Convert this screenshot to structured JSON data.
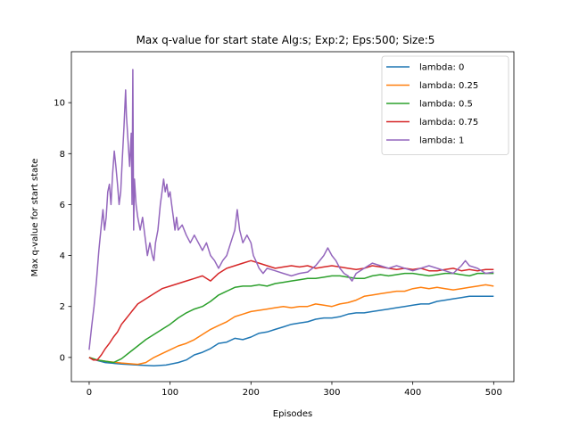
{
  "chart_data": {
    "type": "line",
    "title": "Max q-value for start state Alg:s; Exp:2; Eps:500; Size:5",
    "xlabel": "Episodes",
    "ylabel": "Max q-value for start state",
    "xlim": [
      -22,
      525
    ],
    "ylim": [
      -0.95,
      12.0
    ],
    "xticks": [
      0,
      100,
      200,
      300,
      400,
      500
    ],
    "yticks": [
      0,
      2,
      4,
      6,
      8,
      10
    ],
    "grid": false,
    "legend": "top-right",
    "series": [
      {
        "name": "lambda: 0",
        "color": "#1f77b4",
        "points": [
          [
            0,
            0
          ],
          [
            10,
            -0.12
          ],
          [
            20,
            -0.2
          ],
          [
            40,
            -0.26
          ],
          [
            60,
            -0.3
          ],
          [
            80,
            -0.33
          ],
          [
            95,
            -0.3
          ],
          [
            110,
            -0.2
          ],
          [
            120,
            -0.1
          ],
          [
            130,
            0.1
          ],
          [
            140,
            0.2
          ],
          [
            150,
            0.35
          ],
          [
            160,
            0.55
          ],
          [
            170,
            0.6
          ],
          [
            180,
            0.75
          ],
          [
            190,
            0.7
          ],
          [
            200,
            0.8
          ],
          [
            210,
            0.95
          ],
          [
            220,
            1.0
          ],
          [
            230,
            1.1
          ],
          [
            240,
            1.2
          ],
          [
            250,
            1.3
          ],
          [
            260,
            1.35
          ],
          [
            270,
            1.4
          ],
          [
            280,
            1.5
          ],
          [
            290,
            1.55
          ],
          [
            300,
            1.55
          ],
          [
            310,
            1.6
          ],
          [
            320,
            1.7
          ],
          [
            330,
            1.75
          ],
          [
            340,
            1.75
          ],
          [
            350,
            1.8
          ],
          [
            360,
            1.85
          ],
          [
            370,
            1.9
          ],
          [
            380,
            1.95
          ],
          [
            390,
            2.0
          ],
          [
            400,
            2.05
          ],
          [
            410,
            2.1
          ],
          [
            420,
            2.1
          ],
          [
            430,
            2.2
          ],
          [
            440,
            2.25
          ],
          [
            450,
            2.3
          ],
          [
            460,
            2.35
          ],
          [
            470,
            2.4
          ],
          [
            480,
            2.4
          ],
          [
            490,
            2.4
          ],
          [
            500,
            2.4
          ]
        ]
      },
      {
        "name": "lambda: 0.25",
        "color": "#ff7f0e",
        "points": [
          [
            0,
            0
          ],
          [
            10,
            -0.1
          ],
          [
            20,
            -0.15
          ],
          [
            40,
            -0.22
          ],
          [
            60,
            -0.27
          ],
          [
            70,
            -0.2
          ],
          [
            80,
            0
          ],
          [
            90,
            0.15
          ],
          [
            100,
            0.3
          ],
          [
            110,
            0.45
          ],
          [
            120,
            0.55
          ],
          [
            130,
            0.7
          ],
          [
            140,
            0.9
          ],
          [
            150,
            1.1
          ],
          [
            160,
            1.25
          ],
          [
            170,
            1.4
          ],
          [
            180,
            1.6
          ],
          [
            190,
            1.7
          ],
          [
            200,
            1.8
          ],
          [
            210,
            1.85
          ],
          [
            220,
            1.9
          ],
          [
            230,
            1.95
          ],
          [
            240,
            2.0
          ],
          [
            250,
            1.95
          ],
          [
            260,
            2.0
          ],
          [
            270,
            2.0
          ],
          [
            280,
            2.1
          ],
          [
            290,
            2.05
          ],
          [
            300,
            2.0
          ],
          [
            310,
            2.1
          ],
          [
            320,
            2.15
          ],
          [
            330,
            2.25
          ],
          [
            340,
            2.4
          ],
          [
            350,
            2.45
          ],
          [
            360,
            2.5
          ],
          [
            370,
            2.55
          ],
          [
            380,
            2.6
          ],
          [
            390,
            2.6
          ],
          [
            400,
            2.7
          ],
          [
            410,
            2.75
          ],
          [
            420,
            2.7
          ],
          [
            430,
            2.75
          ],
          [
            440,
            2.7
          ],
          [
            450,
            2.65
          ],
          [
            460,
            2.7
          ],
          [
            470,
            2.75
          ],
          [
            480,
            2.8
          ],
          [
            490,
            2.85
          ],
          [
            500,
            2.8
          ]
        ]
      },
      {
        "name": "lambda: 0.5",
        "color": "#2ca02c",
        "points": [
          [
            0,
            0
          ],
          [
            10,
            -0.1
          ],
          [
            20,
            -0.15
          ],
          [
            30,
            -0.2
          ],
          [
            40,
            -0.05
          ],
          [
            50,
            0.2
          ],
          [
            60,
            0.45
          ],
          [
            70,
            0.7
          ],
          [
            80,
            0.9
          ],
          [
            90,
            1.1
          ],
          [
            100,
            1.3
          ],
          [
            110,
            1.55
          ],
          [
            120,
            1.75
          ],
          [
            130,
            1.9
          ],
          [
            140,
            2.0
          ],
          [
            150,
            2.2
          ],
          [
            160,
            2.45
          ],
          [
            170,
            2.6
          ],
          [
            180,
            2.75
          ],
          [
            190,
            2.8
          ],
          [
            200,
            2.8
          ],
          [
            210,
            2.85
          ],
          [
            220,
            2.8
          ],
          [
            230,
            2.9
          ],
          [
            240,
            2.95
          ],
          [
            250,
            3.0
          ],
          [
            260,
            3.05
          ],
          [
            270,
            3.1
          ],
          [
            280,
            3.1
          ],
          [
            290,
            3.15
          ],
          [
            300,
            3.2
          ],
          [
            310,
            3.2
          ],
          [
            320,
            3.15
          ],
          [
            330,
            3.1
          ],
          [
            340,
            3.1
          ],
          [
            350,
            3.2
          ],
          [
            360,
            3.25
          ],
          [
            370,
            3.2
          ],
          [
            380,
            3.25
          ],
          [
            390,
            3.3
          ],
          [
            400,
            3.3
          ],
          [
            410,
            3.25
          ],
          [
            420,
            3.2
          ],
          [
            430,
            3.25
          ],
          [
            440,
            3.3
          ],
          [
            450,
            3.3
          ],
          [
            460,
            3.25
          ],
          [
            470,
            3.2
          ],
          [
            480,
            3.3
          ],
          [
            490,
            3.3
          ],
          [
            500,
            3.3
          ]
        ]
      },
      {
        "name": "lambda: 0.75",
        "color": "#d62728",
        "points": [
          [
            0,
            0
          ],
          [
            5,
            -0.1
          ],
          [
            10,
            -0.1
          ],
          [
            15,
            0.1
          ],
          [
            20,
            0.35
          ],
          [
            25,
            0.55
          ],
          [
            30,
            0.8
          ],
          [
            35,
            1.0
          ],
          [
            40,
            1.3
          ],
          [
            45,
            1.5
          ],
          [
            50,
            1.7
          ],
          [
            55,
            1.9
          ],
          [
            60,
            2.1
          ],
          [
            70,
            2.3
          ],
          [
            80,
            2.5
          ],
          [
            90,
            2.7
          ],
          [
            100,
            2.8
          ],
          [
            110,
            2.9
          ],
          [
            120,
            3.0
          ],
          [
            130,
            3.1
          ],
          [
            140,
            3.2
          ],
          [
            150,
            3.0
          ],
          [
            160,
            3.3
          ],
          [
            170,
            3.5
          ],
          [
            180,
            3.6
          ],
          [
            190,
            3.7
          ],
          [
            200,
            3.8
          ],
          [
            210,
            3.7
          ],
          [
            220,
            3.6
          ],
          [
            230,
            3.5
          ],
          [
            240,
            3.55
          ],
          [
            250,
            3.6
          ],
          [
            260,
            3.55
          ],
          [
            270,
            3.6
          ],
          [
            280,
            3.5
          ],
          [
            290,
            3.55
          ],
          [
            300,
            3.6
          ],
          [
            310,
            3.55
          ],
          [
            320,
            3.5
          ],
          [
            330,
            3.45
          ],
          [
            340,
            3.5
          ],
          [
            350,
            3.6
          ],
          [
            360,
            3.55
          ],
          [
            370,
            3.5
          ],
          [
            380,
            3.45
          ],
          [
            390,
            3.5
          ],
          [
            400,
            3.45
          ],
          [
            410,
            3.5
          ],
          [
            420,
            3.4
          ],
          [
            430,
            3.4
          ],
          [
            440,
            3.45
          ],
          [
            450,
            3.5
          ],
          [
            460,
            3.4
          ],
          [
            470,
            3.45
          ],
          [
            480,
            3.4
          ],
          [
            490,
            3.45
          ],
          [
            500,
            3.45
          ]
        ]
      },
      {
        "name": "lambda: 1",
        "color": "#9467bd",
        "points": [
          [
            0,
            0.3
          ],
          [
            3,
            1.2
          ],
          [
            6,
            2.0
          ],
          [
            9,
            3.0
          ],
          [
            12,
            4.2
          ],
          [
            15,
            5.2
          ],
          [
            17,
            5.8
          ],
          [
            19,
            5.0
          ],
          [
            21,
            5.5
          ],
          [
            23,
            6.5
          ],
          [
            25,
            6.8
          ],
          [
            27,
            6.0
          ],
          [
            29,
            7.2
          ],
          [
            31,
            8.1
          ],
          [
            33,
            7.5
          ],
          [
            35,
            6.8
          ],
          [
            37,
            6.0
          ],
          [
            39,
            6.5
          ],
          [
            41,
            7.8
          ],
          [
            43,
            9.0
          ],
          [
            45,
            10.5
          ],
          [
            46,
            9.5
          ],
          [
            48,
            8.5
          ],
          [
            50,
            7.5
          ],
          [
            52,
            8.8
          ],
          [
            53,
            6.0
          ],
          [
            54,
            11.3
          ],
          [
            55,
            5.0
          ],
          [
            56,
            7.0
          ],
          [
            58,
            6.0
          ],
          [
            60,
            5.5
          ],
          [
            63,
            5.0
          ],
          [
            66,
            5.5
          ],
          [
            70,
            4.5
          ],
          [
            72,
            4.0
          ],
          [
            75,
            4.5
          ],
          [
            78,
            4.0
          ],
          [
            80,
            3.8
          ],
          [
            82,
            4.5
          ],
          [
            85,
            5.0
          ],
          [
            88,
            6.0
          ],
          [
            90,
            6.5
          ],
          [
            92,
            7.0
          ],
          [
            94,
            6.5
          ],
          [
            96,
            6.8
          ],
          [
            98,
            6.3
          ],
          [
            100,
            6.5
          ],
          [
            102,
            6.0
          ],
          [
            104,
            5.5
          ],
          [
            106,
            5.0
          ],
          [
            108,
            5.5
          ],
          [
            110,
            5.0
          ],
          [
            115,
            5.2
          ],
          [
            120,
            4.8
          ],
          [
            125,
            4.5
          ],
          [
            130,
            4.8
          ],
          [
            135,
            4.5
          ],
          [
            140,
            4.2
          ],
          [
            145,
            4.5
          ],
          [
            150,
            4.0
          ],
          [
            155,
            3.8
          ],
          [
            160,
            3.5
          ],
          [
            165,
            3.8
          ],
          [
            170,
            4.0
          ],
          [
            175,
            4.5
          ],
          [
            180,
            5.0
          ],
          [
            183,
            5.8
          ],
          [
            186,
            5.0
          ],
          [
            190,
            4.5
          ],
          [
            195,
            4.8
          ],
          [
            200,
            4.5
          ],
          [
            203,
            4.0
          ],
          [
            206,
            3.8
          ],
          [
            210,
            3.5
          ],
          [
            215,
            3.3
          ],
          [
            220,
            3.5
          ],
          [
            230,
            3.4
          ],
          [
            240,
            3.3
          ],
          [
            250,
            3.2
          ],
          [
            260,
            3.3
          ],
          [
            270,
            3.35
          ],
          [
            280,
            3.6
          ],
          [
            290,
            4.0
          ],
          [
            295,
            4.3
          ],
          [
            300,
            4.0
          ],
          [
            305,
            3.8
          ],
          [
            310,
            3.5
          ],
          [
            315,
            3.3
          ],
          [
            320,
            3.2
          ],
          [
            325,
            3.0
          ],
          [
            330,
            3.3
          ],
          [
            340,
            3.5
          ],
          [
            350,
            3.7
          ],
          [
            360,
            3.6
          ],
          [
            370,
            3.5
          ],
          [
            380,
            3.6
          ],
          [
            390,
            3.5
          ],
          [
            400,
            3.4
          ],
          [
            410,
            3.5
          ],
          [
            420,
            3.6
          ],
          [
            430,
            3.5
          ],
          [
            440,
            3.4
          ],
          [
            450,
            3.3
          ],
          [
            460,
            3.6
          ],
          [
            465,
            3.8
          ],
          [
            470,
            3.6
          ],
          [
            480,
            3.5
          ],
          [
            490,
            3.3
          ],
          [
            500,
            3.35
          ]
        ]
      }
    ]
  }
}
